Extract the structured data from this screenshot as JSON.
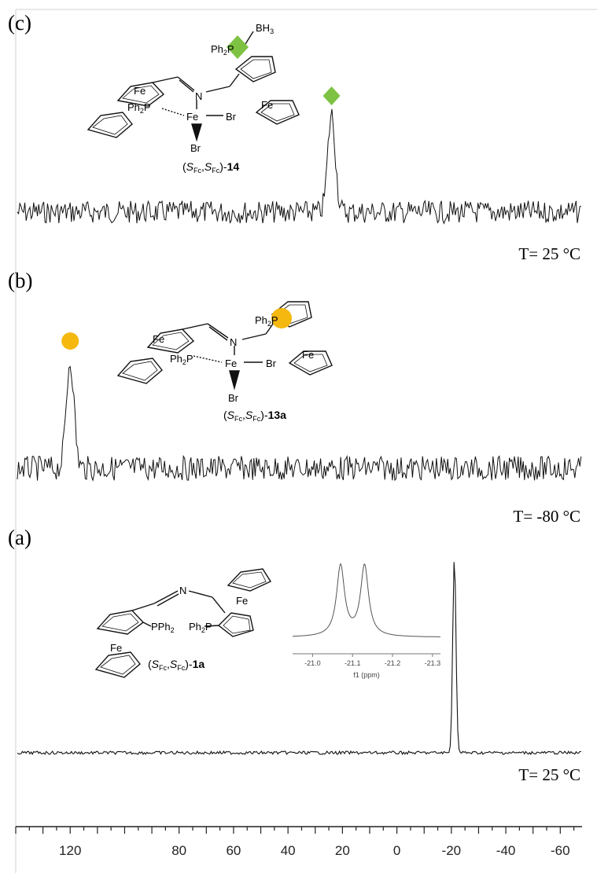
{
  "chart_data": {
    "type": "line",
    "x_axis": {
      "direction": "reversed",
      "range": [
        140,
        -68
      ],
      "tick_labels": [
        "120",
        "80",
        "60",
        "40",
        "20",
        "0",
        "-20",
        "-40",
        "-60"
      ],
      "tick_values": [
        120,
        80,
        60,
        40,
        20,
        0,
        -20,
        -40,
        -60
      ]
    },
    "panels": [
      {
        "label": "(c)",
        "temperature": "T= 25 °C",
        "compound": "14",
        "marker": {
          "shape": "diamond",
          "color": "#7dc242",
          "peak_x": 24
        },
        "peaks": [
          {
            "x": 24,
            "rel_height": 1.0
          }
        ],
        "noise_amplitude": 0.24,
        "structure_labels": {
          "bh3_b": "BH",
          "bh3_n": "3",
          "ph2p_ph": "Ph",
          "ph2p_2": "2",
          "ph2p_p": "P",
          "fe_top": "Fe",
          "fe_right": "Fe",
          "n": "N",
          "ph2p2_ph": "Ph",
          "ph2p2_2": "2",
          "ph2p2_p": "P",
          "fe_center": "Fe",
          "br1": "Br",
          "br2": "Br"
        }
      },
      {
        "label": "(b)",
        "temperature": "T= -80 °C",
        "compound": "13a",
        "marker": {
          "shape": "circle",
          "color": "#f5b80f",
          "peak_x": 120
        },
        "peaks": [
          {
            "x": 120,
            "rel_height": 1.0
          }
        ],
        "noise_amplitude": 0.26,
        "structure_labels": {
          "ph2p_ph": "Ph",
          "ph2p_2": "2",
          "ph2p_p": "P",
          "fe_top": "Fe",
          "fe_right": "Fe",
          "n": "N",
          "ph2p2_ph": "Ph",
          "ph2p2_2": "2",
          "ph2p2_p": "P",
          "fe_center": "Fe",
          "br1": "Br",
          "br2": "Br"
        }
      },
      {
        "label": "(a)",
        "temperature": "T= 25 °C",
        "compound": "1a",
        "peaks": [
          {
            "x": -21.1,
            "rel_height": 1.0
          }
        ],
        "noise_amplitude": 0.02,
        "structure_labels": {
          "n": "N",
          "pph2_p": "PPh",
          "pph2_2": "2",
          "ph2p_ph": "Ph",
          "ph2p_2": "2",
          "ph2p_p": "P",
          "fe_left": "Fe",
          "fe_right": "Fe"
        },
        "inset": {
          "x_range": [
            -20.95,
            -21.32
          ],
          "tick_labels": [
            "-21.0",
            "-21.1",
            "-21.2",
            "-21.3"
          ],
          "tick_values": [
            -21.0,
            -21.1,
            -21.2,
            -21.3
          ],
          "xlabel": "f1 (ppm)",
          "doublet_peaks": [
            -21.07,
            -21.13
          ]
        }
      }
    ],
    "compound_prefix": {
      "open": "(",
      "s": "S",
      "fc": "Fc",
      "comma": ",",
      "close": ")-"
    }
  }
}
